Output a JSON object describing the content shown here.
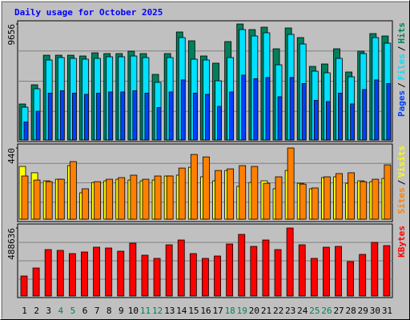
{
  "chart_data": [
    {
      "type": "bar",
      "title": "Daily usage for October 2025",
      "title_color": "#0000ff",
      "ylim": [
        0,
        9656
      ],
      "yticks": [
        9656
      ],
      "legend_separator": "/",
      "series": [
        {
          "name": "Hits",
          "color": "#00805c",
          "values": [
            2997,
            4595,
            7060,
            7060,
            7060,
            6993,
            7259,
            7193,
            7193,
            7393,
            7193,
            5461,
            7193,
            8991,
            8258,
            6993,
            6394,
            8192,
            9656,
            9191,
            9391,
            7592,
            9324,
            8525,
            6127,
            6327,
            7592,
            5661,
            7393,
            8858,
            8658
          ]
        },
        {
          "name": "Files",
          "color": "#00e0ff",
          "values": [
            2731,
            4262,
            6660,
            6860,
            6793,
            6727,
            6793,
            6926,
            6926,
            6993,
            6860,
            4795,
            6860,
            8525,
            6727,
            6660,
            4928,
            6860,
            9191,
            8658,
            8924,
            6260,
            8791,
            7992,
            5728,
            5594,
            6793,
            5261,
            7193,
            8525,
            8059
          ]
        },
        {
          "name": "Pages",
          "color": "#0040ff",
          "values": [
            1500,
            2400,
            3900,
            4100,
            3900,
            3800,
            3900,
            4000,
            4000,
            4100,
            3900,
            2700,
            4000,
            5000,
            3900,
            3800,
            2800,
            4000,
            5400,
            5100,
            5200,
            3600,
            5200,
            4700,
            3300,
            3200,
            3900,
            3000,
            4200,
            5000,
            4700
          ]
        }
      ]
    },
    {
      "type": "bar",
      "ylim": [
        0,
        440
      ],
      "yticks": [
        440
      ],
      "legend_separator": "/",
      "series": [
        {
          "name": "Visits",
          "color": "#ffff00",
          "values": [
            326,
            287,
            237,
            247,
            331,
            163,
            227,
            237,
            247,
            242,
            237,
            242,
            267,
            272,
            321,
            262,
            237,
            301,
            203,
            227,
            237,
            188,
            301,
            222,
            188,
            257,
            262,
            222,
            237,
            232,
            252
          ]
        },
        {
          "name": "Sites",
          "color": "#ff8000",
          "values": [
            267,
            242,
            232,
            247,
            356,
            188,
            232,
            247,
            257,
            272,
            247,
            267,
            267,
            316,
            400,
            385,
            301,
            311,
            331,
            326,
            222,
            262,
            440,
            217,
            193,
            262,
            282,
            287,
            232,
            247,
            336
          ]
        }
      ]
    },
    {
      "type": "bar",
      "ylim": [
        0,
        488636
      ],
      "yticks": [
        488636
      ],
      "series": [
        {
          "name": "KBytes",
          "color": "#ff0000",
          "values": [
            143725,
            201215,
            333442,
            327693,
            304697,
            316195,
            350689,
            344940,
            321944,
            379434,
            293199,
            270203,
            367936,
            402430,
            304697,
            270203,
            287450,
            373685,
            442673,
            356438,
            402430,
            333442,
            488636,
            367936,
            270203,
            350689,
            356438,
            247207,
            298948,
            385183,
            362187
          ]
        }
      ],
      "categories": [
        "1",
        "2",
        "3",
        "4",
        "5",
        "6",
        "7",
        "8",
        "9",
        "10",
        "11",
        "12",
        "13",
        "14",
        "15",
        "16",
        "17",
        "18",
        "19",
        "20",
        "21",
        "22",
        "23",
        "24",
        "25",
        "26",
        "27",
        "28",
        "29",
        "30",
        "31"
      ],
      "category_label_colors": [
        "#000000",
        "#000000",
        "#000000",
        "#00805c",
        "#00805c",
        "#000000",
        "#000000",
        "#000000",
        "#000000",
        "#000000",
        "#00805c",
        "#00805c",
        "#000000",
        "#000000",
        "#000000",
        "#000000",
        "#000000",
        "#00805c",
        "#00805c",
        "#000000",
        "#000000",
        "#000000",
        "#000000",
        "#000000",
        "#00805c",
        "#00805c",
        "#000000",
        "#000000",
        "#000000",
        "#000000",
        "#000000"
      ]
    }
  ]
}
